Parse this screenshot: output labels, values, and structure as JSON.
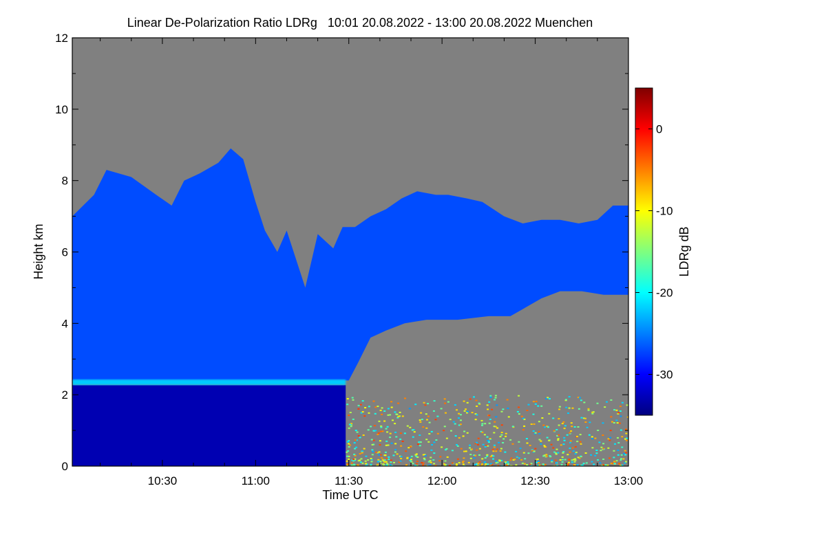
{
  "chart_data": {
    "type": "heatmap",
    "title": "Linear De-Polarization Ratio LDRg   10:01 20.08.2022 - 13:00 20.08.2022 Muenchen",
    "xlabel": "Time UTC",
    "ylabel": "Height km",
    "x_ticks": [
      {
        "label": "10:30",
        "value": 630
      },
      {
        "label": "11:00",
        "value": 660
      },
      {
        "label": "11:30",
        "value": 690
      },
      {
        "label": "12:00",
        "value": 720
      },
      {
        "label": "12:30",
        "value": 750
      },
      {
        "label": "13:00",
        "value": 780
      }
    ],
    "xlim": [
      601,
      780
    ],
    "y_ticks": [
      0,
      2,
      4,
      6,
      8,
      10,
      12
    ],
    "ylim": [
      0,
      12
    ],
    "colorbar": {
      "label": "LDRg dB",
      "range": [
        -35,
        5
      ],
      "ticks": [
        0,
        -10,
        -20,
        -30
      ],
      "colormap": [
        "#00007f",
        "#0000ff",
        "#007fff",
        "#00ffff",
        "#7fff7f",
        "#ffff00",
        "#ff7f00",
        "#ff0000",
        "#7f0000"
      ]
    },
    "no_data_color": "#808080",
    "features": {
      "cloud_top_km": [
        [
          601,
          7.0
        ],
        [
          608,
          7.6
        ],
        [
          612,
          8.3
        ],
        [
          620,
          8.1
        ],
        [
          628,
          7.6
        ],
        [
          633,
          7.3
        ],
        [
          637,
          8.0
        ],
        [
          642,
          8.2
        ],
        [
          648,
          8.5
        ],
        [
          652,
          8.9
        ],
        [
          656,
          8.6
        ],
        [
          660,
          7.4
        ],
        [
          663,
          6.6
        ],
        [
          667,
          6.0
        ],
        [
          670,
          6.6
        ],
        [
          673,
          5.8
        ],
        [
          676,
          5.0
        ],
        [
          680,
          6.5
        ],
        [
          685,
          6.1
        ],
        [
          688,
          6.7
        ],
        [
          692,
          6.7
        ],
        [
          697,
          7.0
        ],
        [
          702,
          7.2
        ],
        [
          707,
          7.5
        ],
        [
          712,
          7.7
        ],
        [
          718,
          7.6
        ],
        [
          722,
          7.6
        ],
        [
          728,
          7.5
        ],
        [
          733,
          7.4
        ],
        [
          740,
          7.0
        ],
        [
          746,
          6.8
        ],
        [
          752,
          6.9
        ],
        [
          758,
          6.9
        ],
        [
          764,
          6.8
        ],
        [
          770,
          6.9
        ],
        [
          775,
          7.3
        ],
        [
          780,
          7.3
        ]
      ],
      "cloud_base_km": [
        [
          601,
          2.4
        ],
        [
          690,
          2.4
        ],
        [
          693,
          2.9
        ],
        [
          697,
          3.6
        ],
        [
          702,
          3.8
        ],
        [
          708,
          4.0
        ],
        [
          715,
          4.1
        ],
        [
          725,
          4.1
        ],
        [
          735,
          4.2
        ],
        [
          742,
          4.2
        ],
        [
          746,
          4.4
        ],
        [
          752,
          4.7
        ],
        [
          758,
          4.9
        ],
        [
          765,
          4.9
        ],
        [
          772,
          4.8
        ],
        [
          780,
          4.8
        ]
      ],
      "boundary_layer_top_km": 2.35,
      "boundary_layer_ldr_db": -22,
      "cloud_ldr_db": -27,
      "below_cloud_ldr_db": -33,
      "precip_end_time": 689
    }
  }
}
